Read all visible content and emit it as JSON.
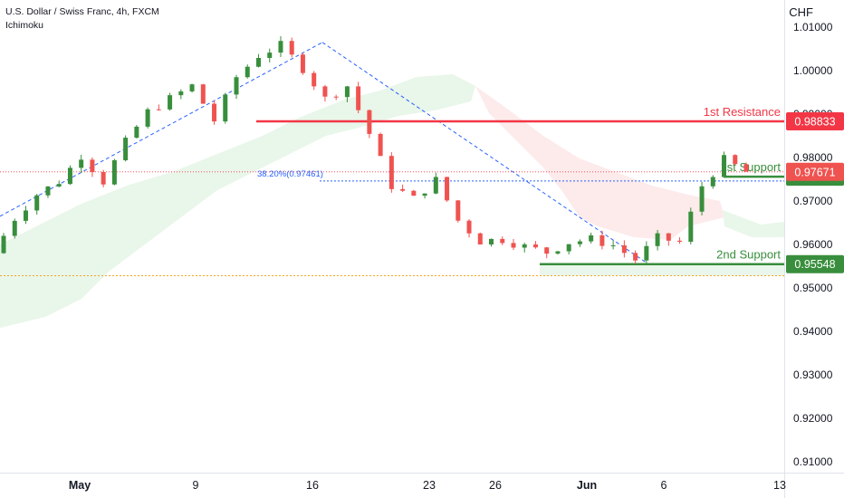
{
  "header": {
    "symbol_line": "U.S. Dollar / Swiss Franc, 4h, FXCM",
    "indicator": "Ichimoku",
    "currency": "CHF"
  },
  "colors": {
    "up": "#388e3c",
    "down": "#ef5350",
    "resistance": "#f23645",
    "support": "#388e3c",
    "fib": "#2962ff",
    "cloud_bull": "#e8f5e9",
    "cloud_bear": "#fdeaea"
  },
  "chart_data": {
    "type": "candlestick",
    "y_axis": {
      "min": 0.91,
      "max": 1.01,
      "ticks": [
        "1.01000",
        "1.00000",
        "0.99000",
        "0.98000",
        "0.97000",
        "0.96000",
        "0.95000",
        "0.94000",
        "0.93000",
        "0.92000",
        "0.91000"
      ]
    },
    "x_axis": {
      "ticks": [
        "May",
        "9",
        "16",
        "23",
        "26",
        "Jun",
        "6",
        "13"
      ]
    },
    "levels": [
      {
        "label": "1st Resistance",
        "value": "0.98833"
      },
      {
        "label": "1st Support",
        "value": "0.97561"
      },
      {
        "label": "2nd Support",
        "value": "0.95548"
      }
    ],
    "current_price": "0.97671",
    "fibonacci": {
      "label": "38.20%(0.97461)",
      "value": 0.97461
    },
    "trendlines": [
      {
        "from": [
          "Apr 28",
          0.9665
        ],
        "to": [
          "May 17",
          1.0065
        ]
      },
      {
        "from": [
          "May 17",
          1.0065
        ],
        "to": [
          "Jun 3",
          0.9555
        ]
      }
    ],
    "ohlc_path": [
      [
        0.958,
        0.966
      ],
      [
        0.966,
        0.9715
      ],
      [
        0.9715,
        0.9745
      ],
      [
        0.9745,
        0.9805
      ],
      [
        0.9805,
        0.9745
      ],
      [
        0.9745,
        0.9835
      ],
      [
        0.9835,
        0.9905
      ],
      [
        0.9905,
        0.9935
      ],
      [
        0.9935,
        0.9965
      ],
      [
        0.9965,
        0.9885
      ],
      [
        0.9885,
        0.9985
      ],
      [
        0.9985,
        1.0035
      ],
      [
        1.0035,
        1.0058
      ],
      [
        1.0058,
        1.0005
      ],
      [
        1.0005,
        0.9935
      ],
      [
        0.9935,
        0.9965
      ],
      [
        0.9965,
        0.9855
      ],
      [
        0.9855,
        0.9735
      ],
      [
        0.9735,
        0.9705
      ],
      [
        0.9705,
        0.9748
      ],
      [
        0.9748,
        0.9655
      ],
      [
        0.9655,
        0.9608
      ],
      [
        0.9608,
        0.9612
      ],
      [
        0.9612,
        0.9595
      ],
      [
        0.9595,
        0.9582
      ],
      [
        0.9582,
        0.9605
      ],
      [
        0.9605,
        0.9612
      ],
      [
        0.9612,
        0.9598
      ],
      [
        0.9598,
        0.9565
      ],
      [
        0.9565,
        0.9615
      ],
      [
        0.9615,
        0.9605
      ],
      [
        0.9605,
        0.9735
      ],
      [
        0.9735,
        0.9795
      ],
      [
        0.9795,
        0.9767
      ]
    ]
  }
}
